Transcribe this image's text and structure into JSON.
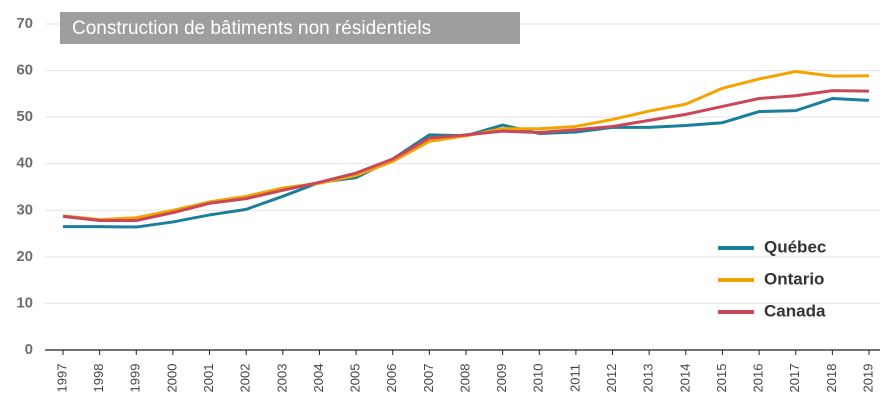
{
  "chart_data": {
    "type": "line",
    "title": "Construction de bâtiments non résidentiels",
    "categories": [
      "1997",
      "1998",
      "1999",
      "2000",
      "2001",
      "2002",
      "2003",
      "2004",
      "2005",
      "2006",
      "2007",
      "2008",
      "2009",
      "2010",
      "2011",
      "2012",
      "2013",
      "2014",
      "2015",
      "2016",
      "2017",
      "2018",
      "2019"
    ],
    "series": [
      {
        "name": "Québec",
        "color": "#1a7f99",
        "values": [
          26.5,
          26.5,
          26.4,
          27.5,
          29,
          30.2,
          33,
          36,
          37,
          41,
          46.2,
          46,
          48.3,
          46.5,
          46.8,
          47.8,
          47.8,
          48.2,
          48.8,
          51.2,
          51.4,
          54,
          53.6
        ]
      },
      {
        "name": "Ontario",
        "color": "#f5a300",
        "values": [
          28.8,
          28,
          28.4,
          30,
          31.8,
          33,
          34.8,
          35.8,
          37.5,
          40.5,
          44.8,
          46,
          47.5,
          47.5,
          48,
          49.5,
          51.3,
          52.8,
          56.2,
          58.2,
          59.8,
          58.8,
          58.9
        ]
      },
      {
        "name": "Canada",
        "color": "#c8485a",
        "values": [
          28.7,
          27.8,
          27.8,
          29.5,
          31.5,
          32.5,
          34.3,
          36,
          38,
          41,
          45.5,
          46.2,
          47,
          46.7,
          47.3,
          48,
          49.3,
          50.6,
          52.3,
          54,
          54.6,
          55.7,
          55.6
        ]
      }
    ],
    "ylim": [
      0,
      70
    ],
    "yticks": [
      0,
      10,
      20,
      30,
      40,
      50,
      60,
      70
    ],
    "grid": true,
    "legend": "lower right"
  }
}
